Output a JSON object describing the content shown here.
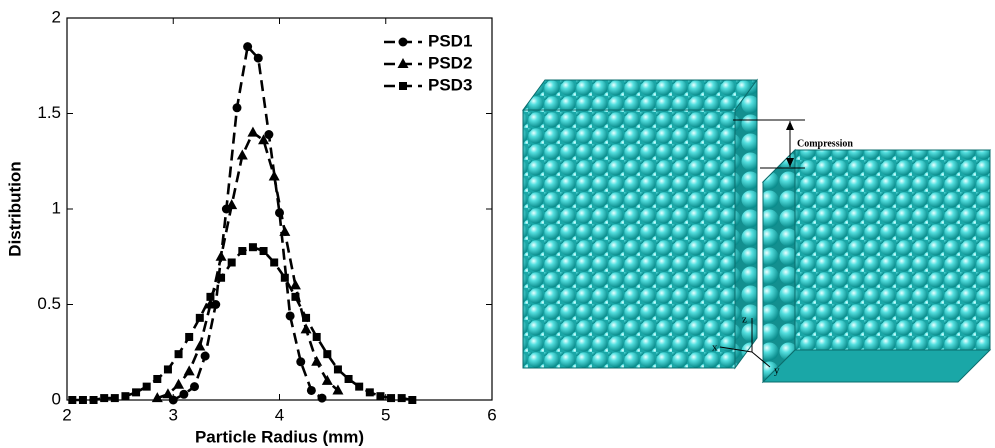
{
  "chart_data": {
    "type": "line",
    "xlabel": "Particle Radius (mm)",
    "ylabel": "Distribution",
    "xlim": [
      2,
      6
    ],
    "xticks": [
      2,
      3,
      4,
      5,
      6
    ],
    "ylim": [
      0,
      2
    ],
    "yticks": [
      0,
      0.5,
      1,
      1.5,
      2
    ],
    "legend": "upper right",
    "line_style": "dashed",
    "series": [
      {
        "name": "PSD1",
        "marker": "circle",
        "color": "#000000",
        "x": [
          3.0,
          3.1,
          3.2,
          3.3,
          3.4,
          3.5,
          3.6,
          3.7,
          3.8,
          3.9,
          4.0,
          4.1,
          4.2,
          4.3,
          4.4
        ],
        "values": [
          0.0,
          0.03,
          0.07,
          0.23,
          0.5,
          1.0,
          1.53,
          1.85,
          1.79,
          1.39,
          0.98,
          0.44,
          0.2,
          0.05,
          0.01
        ]
      },
      {
        "name": "PSD2",
        "marker": "triangle",
        "color": "#000000",
        "x": [
          2.85,
          2.95,
          3.05,
          3.15,
          3.25,
          3.35,
          3.45,
          3.55,
          3.65,
          3.75,
          3.85,
          3.95,
          4.05,
          4.15,
          4.25,
          4.35,
          4.45,
          4.55
        ],
        "values": [
          0.01,
          0.03,
          0.08,
          0.15,
          0.28,
          0.5,
          0.75,
          1.02,
          1.28,
          1.4,
          1.36,
          1.17,
          0.88,
          0.6,
          0.37,
          0.2,
          0.1,
          0.05
        ]
      },
      {
        "name": "PSD3",
        "marker": "square",
        "color": "#000000",
        "x": [
          2.05,
          2.15,
          2.25,
          2.35,
          2.45,
          2.55,
          2.65,
          2.75,
          2.85,
          2.95,
          3.05,
          3.15,
          3.25,
          3.35,
          3.45,
          3.55,
          3.65,
          3.75,
          3.85,
          3.95,
          4.05,
          4.15,
          4.25,
          4.35,
          4.45,
          4.55,
          4.65,
          4.75,
          4.85,
          4.95,
          5.05,
          5.15,
          5.25
        ],
        "values": [
          0.0,
          0.0,
          0.0,
          0.01,
          0.01,
          0.02,
          0.04,
          0.07,
          0.11,
          0.16,
          0.24,
          0.33,
          0.43,
          0.54,
          0.64,
          0.72,
          0.78,
          0.8,
          0.78,
          0.72,
          0.64,
          0.54,
          0.43,
          0.33,
          0.24,
          0.16,
          0.11,
          0.07,
          0.04,
          0.02,
          0.01,
          0.01,
          0.0
        ]
      }
    ]
  },
  "figure_b": {
    "annotation": "Compression",
    "axes": {
      "x": "x",
      "y": "y",
      "z": "z"
    }
  }
}
